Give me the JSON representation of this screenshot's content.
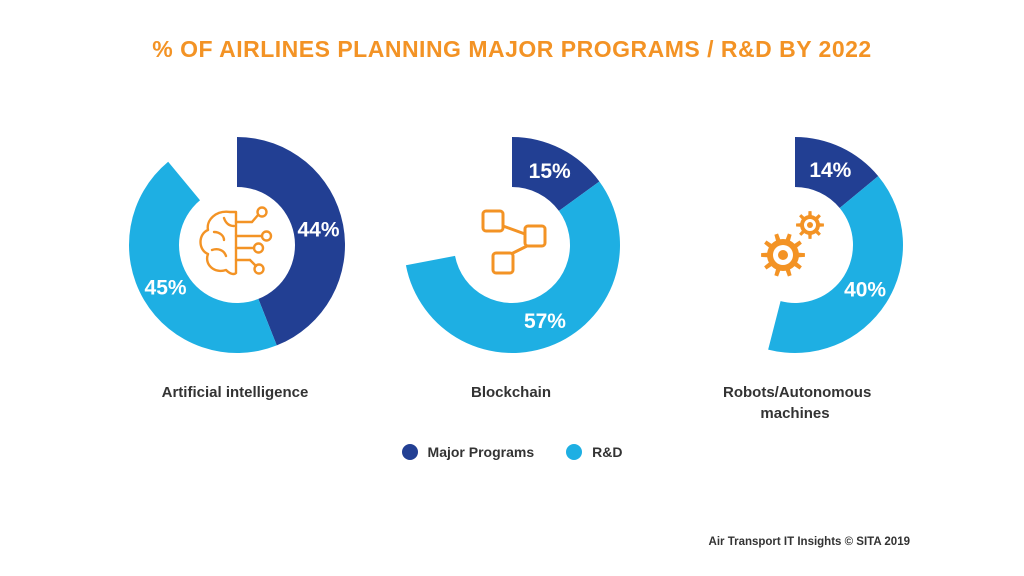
{
  "title": "% OF AIRLINES PLANNING MAJOR PROGRAMS / R&D BY 2022",
  "colors": {
    "major_programs": "#223F93",
    "rnd": "#1EAFE3",
    "title": "#F39325",
    "icon": "#F39325"
  },
  "legend": {
    "placement": "bottom-center",
    "items": [
      {
        "label": "Major Programs"
      },
      {
        "label": "R&D"
      }
    ]
  },
  "source": "Air Transport IT Insights © SITA 2019",
  "chart_data": [
    {
      "type": "pie",
      "label": "Artificial intelligence",
      "icon": "brain-circuit-icon",
      "series": [
        {
          "name": "Major Programs",
          "value": 44,
          "text": "44%"
        },
        {
          "name": "R&D",
          "value": 45,
          "text": "45%"
        }
      ]
    },
    {
      "type": "pie",
      "label": "Blockchain",
      "icon": "blockchain-nodes-icon",
      "series": [
        {
          "name": "Major Programs",
          "value": 15,
          "text": "15%"
        },
        {
          "name": "R&D",
          "value": 57,
          "text": "57%"
        }
      ]
    },
    {
      "type": "pie",
      "label": "Robots/Autonomous machines",
      "icon": "gears-icon",
      "series": [
        {
          "name": "Major Programs",
          "value": 14,
          "text": "14%"
        },
        {
          "name": "R&D",
          "value": 40,
          "text": "40%"
        }
      ]
    }
  ]
}
